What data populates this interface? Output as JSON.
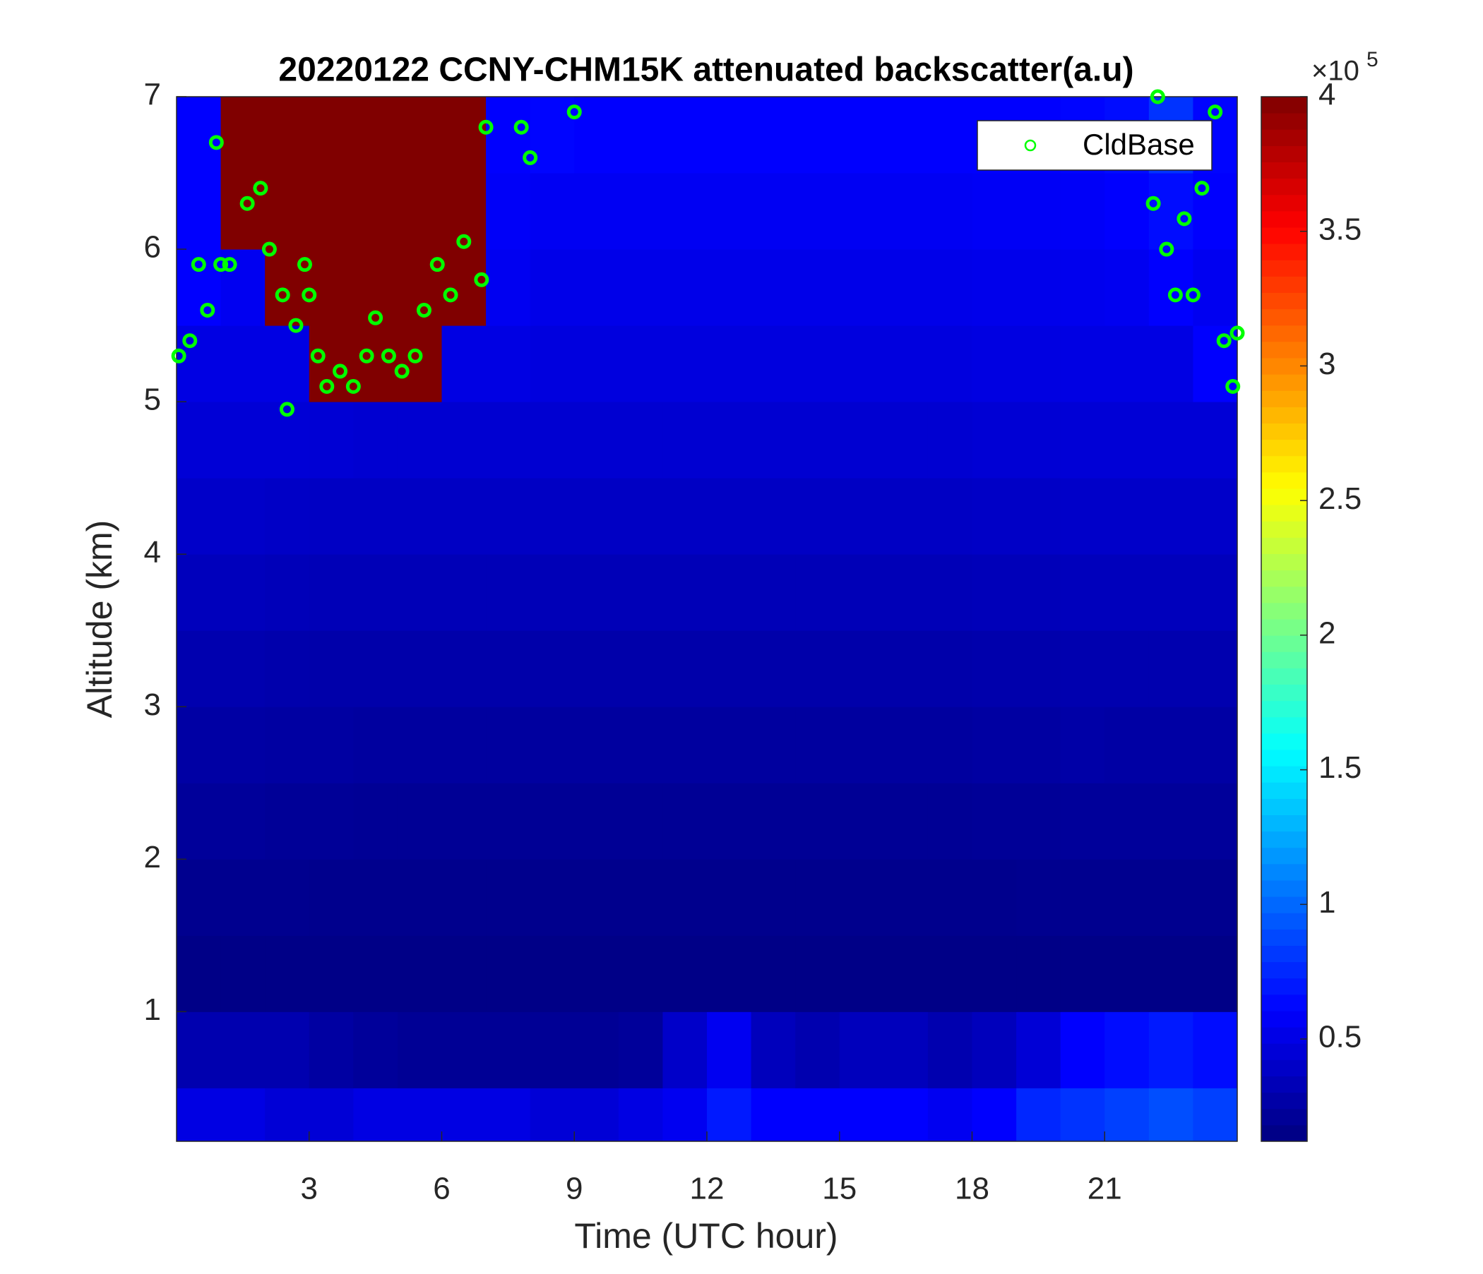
{
  "chart_data": {
    "type": "heatmap",
    "title": "20220122 CCNY-CHM15K attenuated backscatter(a.u)",
    "xlabel": "Time (UTC hour)",
    "ylabel": "Altitude (km)",
    "colormap": "jet",
    "x_edges": [
      0,
      1,
      2,
      3,
      4,
      5,
      6,
      7,
      8,
      9,
      10,
      11,
      12,
      13,
      14,
      15,
      16,
      17,
      18,
      19,
      20,
      21,
      22,
      23,
      24
    ],
    "y_edges": [
      0.15,
      0.5,
      1,
      1.5,
      2,
      2.5,
      3,
      3.5,
      4,
      4.5,
      5,
      5.5,
      6,
      6.5,
      7
    ],
    "z": [
      [
        0.5,
        0.5,
        0.45,
        0.45,
        0.5,
        0.5,
        0.5,
        0.5,
        0.45,
        0.45,
        0.5,
        0.55,
        0.7,
        0.6,
        0.6,
        0.6,
        0.6,
        0.55,
        0.6,
        0.75,
        0.8,
        0.85,
        0.9,
        0.85
      ],
      [
        0.3,
        0.3,
        0.3,
        0.25,
        0.22,
        0.2,
        0.2,
        0.2,
        0.2,
        0.2,
        0.22,
        0.4,
        0.55,
        0.35,
        0.3,
        0.35,
        0.35,
        0.3,
        0.35,
        0.45,
        0.6,
        0.65,
        0.7,
        0.65
      ],
      [
        0.15,
        0.15,
        0.15,
        0.15,
        0.15,
        0.15,
        0.15,
        0.15,
        0.15,
        0.15,
        0.15,
        0.15,
        0.15,
        0.15,
        0.15,
        0.15,
        0.15,
        0.15,
        0.15,
        0.15,
        0.15,
        0.15,
        0.15,
        0.15
      ],
      [
        0.18,
        0.18,
        0.18,
        0.17,
        0.17,
        0.17,
        0.17,
        0.17,
        0.17,
        0.17,
        0.17,
        0.17,
        0.17,
        0.17,
        0.17,
        0.17,
        0.17,
        0.17,
        0.17,
        0.18,
        0.18,
        0.18,
        0.18,
        0.18
      ],
      [
        0.22,
        0.22,
        0.21,
        0.21,
        0.2,
        0.2,
        0.2,
        0.2,
        0.2,
        0.2,
        0.2,
        0.2,
        0.2,
        0.2,
        0.2,
        0.2,
        0.2,
        0.2,
        0.21,
        0.21,
        0.22,
        0.22,
        0.22,
        0.22
      ],
      [
        0.26,
        0.26,
        0.25,
        0.25,
        0.24,
        0.24,
        0.24,
        0.24,
        0.24,
        0.24,
        0.24,
        0.24,
        0.24,
        0.24,
        0.24,
        0.24,
        0.24,
        0.24,
        0.25,
        0.25,
        0.27,
        0.26,
        0.26,
        0.26
      ],
      [
        0.3,
        0.3,
        0.29,
        0.28,
        0.28,
        0.28,
        0.28,
        0.28,
        0.28,
        0.28,
        0.28,
        0.28,
        0.28,
        0.28,
        0.28,
        0.28,
        0.28,
        0.28,
        0.29,
        0.29,
        0.3,
        0.3,
        0.3,
        0.3
      ],
      [
        0.35,
        0.35,
        0.34,
        0.33,
        0.33,
        0.33,
        0.33,
        0.33,
        0.33,
        0.33,
        0.33,
        0.33,
        0.33,
        0.33,
        0.33,
        0.33,
        0.33,
        0.33,
        0.34,
        0.34,
        0.35,
        0.35,
        0.35,
        0.35
      ],
      [
        0.4,
        0.4,
        0.39,
        0.38,
        0.38,
        0.38,
        0.38,
        0.38,
        0.38,
        0.38,
        0.38,
        0.38,
        0.38,
        0.38,
        0.38,
        0.38,
        0.38,
        0.38,
        0.39,
        0.39,
        0.4,
        0.4,
        0.4,
        0.4
      ],
      [
        0.45,
        0.45,
        0.45,
        0.44,
        0.43,
        0.43,
        0.43,
        0.43,
        0.43,
        0.43,
        0.43,
        0.43,
        0.43,
        0.43,
        0.43,
        0.43,
        0.43,
        0.43,
        0.44,
        0.44,
        0.45,
        0.45,
        0.45,
        0.45
      ],
      [
        0.5,
        0.5,
        0.5,
        4,
        4,
        4,
        0.5,
        0.5,
        0.48,
        0.48,
        0.48,
        0.48,
        0.48,
        0.48,
        0.48,
        0.48,
        0.48,
        0.48,
        0.49,
        0.49,
        0.5,
        0.5,
        0.5,
        0.6
      ],
      [
        0.6,
        0.55,
        4,
        4,
        4,
        4,
        4,
        0.55,
        0.52,
        0.52,
        0.52,
        0.52,
        0.52,
        0.52,
        0.52,
        0.52,
        0.52,
        0.52,
        0.53,
        0.53,
        0.54,
        0.55,
        0.6,
        0.55
      ],
      [
        0.6,
        4,
        4,
        4,
        4,
        4,
        4,
        0.58,
        0.56,
        0.56,
        0.56,
        0.56,
        0.56,
        0.56,
        0.56,
        0.56,
        0.56,
        0.56,
        0.57,
        0.57,
        0.58,
        0.6,
        0.65,
        0.6
      ],
      [
        0.6,
        4,
        4,
        4,
        4,
        4,
        4,
        0.6,
        0.62,
        0.6,
        0.6,
        0.6,
        0.6,
        0.6,
        0.6,
        0.6,
        0.6,
        0.6,
        0.6,
        0.6,
        0.62,
        0.65,
        0.8,
        0.62
      ]
    ],
    "clim": [
      0.12,
      4
    ],
    "colorbar_ticks": [
      0.5,
      1,
      1.5,
      2,
      2.5,
      3,
      3.5,
      4
    ],
    "colorbar_multiplier": {
      "base": "×10",
      "exponent": "5"
    },
    "xlim": [
      0,
      24
    ],
    "ylim": [
      0.15,
      7
    ],
    "xticks": [
      3,
      6,
      9,
      12,
      15,
      18,
      21
    ],
    "yticks": [
      1,
      2,
      3,
      4,
      5,
      6,
      7
    ],
    "legend": "northeast",
    "series": [
      {
        "name": "CldBase",
        "type": "scatter",
        "color": "#00ff00",
        "x": [
          0.05,
          0.3,
          0.5,
          0.7,
          0.9,
          1,
          1.2,
          1.6,
          1.9,
          2.1,
          2.4,
          2.5,
          2.7,
          2.9,
          3.0,
          3.2,
          3.4,
          3.7,
          4.0,
          4.3,
          4.5,
          4.8,
          5.1,
          5.4,
          5.6,
          5.9,
          6.2,
          6.5,
          6.9,
          7.0,
          7.8,
          8.0,
          9.0,
          22.1,
          22.2,
          22.4,
          22.6,
          22.8,
          23.0,
          23.2,
          23.5,
          23.7,
          23.9,
          24.0
        ],
        "y": [
          5.3,
          5.4,
          5.9,
          5.6,
          6.7,
          5.9,
          5.9,
          6.3,
          6.4,
          6.0,
          5.7,
          4.95,
          5.5,
          5.9,
          5.7,
          5.3,
          5.1,
          5.2,
          5.1,
          5.3,
          5.55,
          5.3,
          5.2,
          5.3,
          5.6,
          5.9,
          5.7,
          6.05,
          5.8,
          6.8,
          6.8,
          6.6,
          6.9,
          6.3,
          7.0,
          6.0,
          5.7,
          6.2,
          5.7,
          6.4,
          6.9,
          5.4,
          5.1,
          5.45
        ]
      }
    ]
  }
}
